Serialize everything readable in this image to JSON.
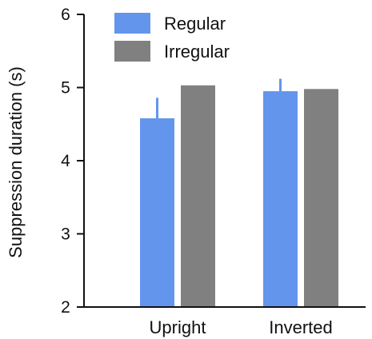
{
  "chart_data": {
    "type": "bar",
    "title": "",
    "xlabel": "",
    "ylabel": "Suppression duration (s)",
    "ylim": [
      2,
      6
    ],
    "yticks": [
      "2",
      "3",
      "4",
      "5",
      "6"
    ],
    "categories": [
      "Upright",
      "Inverted"
    ],
    "series": [
      {
        "name": "Regular",
        "color": "#6495ED",
        "values": [
          4.58,
          4.95
        ],
        "error_upper": [
          0.28,
          0.17
        ]
      },
      {
        "name": "Irregular",
        "color": "#808080",
        "values": [
          5.03,
          4.98
        ],
        "error_upper": [
          0,
          0
        ]
      }
    ],
    "legend": "top-left",
    "grid": false
  }
}
